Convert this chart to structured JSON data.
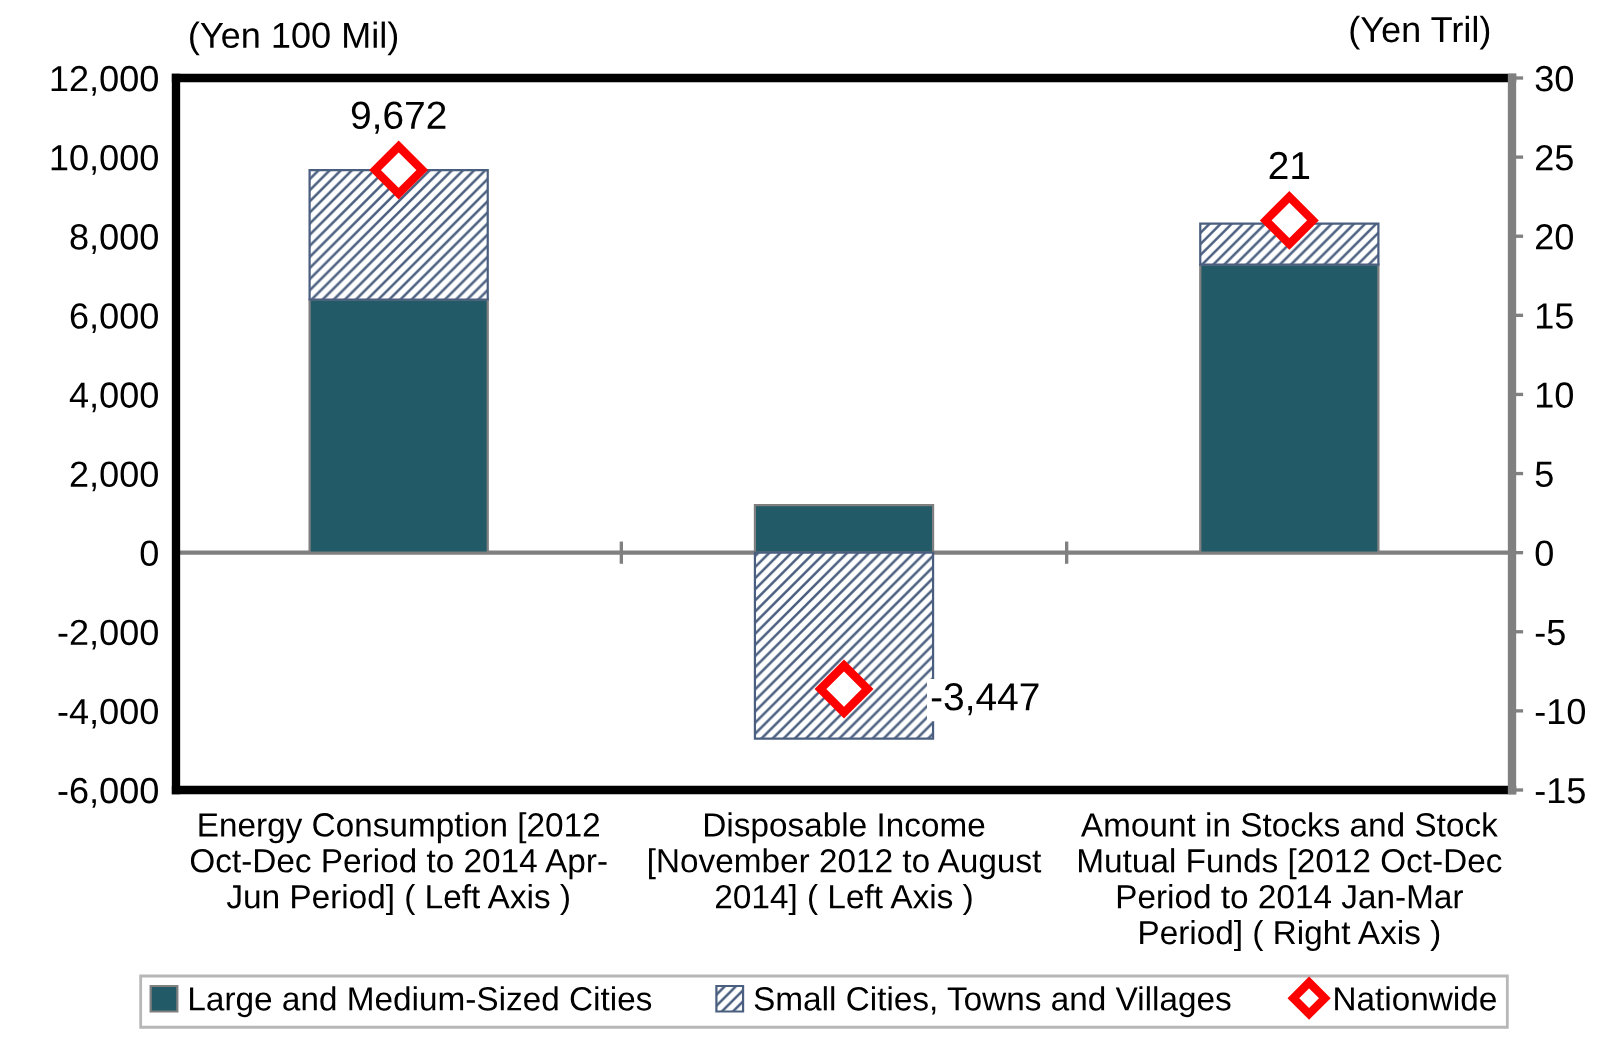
{
  "chart_data": {
    "type": "bar",
    "stacked": true,
    "categories": [
      "Energy Consumption [2012 Oct-Dec Period to 2014 Apr-Jun Period] ( Left Axis )",
      "Disposable Income [November 2012 to August 2014] ( Left Axis )",
      "Amount in Stocks and Stock Mutual Funds [2012 Oct-Dec Period to 2014 Jan-Mar Period] ( Right Axis )"
    ],
    "ylabel": "(Yen 100 Mil)",
    "y2label": "(Yen Tril)",
    "ylim": [
      -6000,
      12000
    ],
    "yticks": [
      {
        "value": -6000,
        "label": "-6,000"
      },
      {
        "value": -4000,
        "label": "-4,000"
      },
      {
        "value": -2000,
        "label": "-2,000"
      },
      0,
      {
        "value": 2000,
        "label": "2,000"
      },
      {
        "value": 4000,
        "label": "4,000"
      },
      {
        "value": 6000,
        "label": "6,000"
      },
      {
        "value": 8000,
        "label": "8,000"
      },
      {
        "value": 10000,
        "label": "10,000"
      },
      {
        "value": 12000,
        "label": "12,000"
      }
    ],
    "y2lim": [
      -15,
      30
    ],
    "y2ticks": [
      -15,
      -10,
      -5,
      0,
      5,
      10,
      15,
      20,
      25,
      30
    ],
    "legend": "bottom",
    "series": [
      {
        "name": "Large and Medium-Sized Cities",
        "color": "#235a68",
        "values": [
          6400,
          1200,
          null
        ]
      },
      {
        "name": "Small Cities, Towns and Villages",
        "color": "#4a5f80",
        "values": [
          3270,
          -4700,
          null
        ]
      },
      {
        "name": "Nationwide",
        "type": "scatter",
        "marker": "diamond",
        "color": "#ff0000",
        "values": [
          9672,
          -3447,
          null
        ],
        "value_labels": [
          "9,672",
          "-3,447",
          null
        ]
      },
      {
        "axis": "y2",
        "color": "#235a68",
        "values": [
          null,
          null,
          18.2
        ]
      },
      {
        "axis": "y2",
        "color": "#4a5f80",
        "values": [
          null,
          null,
          2.6
        ]
      },
      {
        "type": "scatter",
        "axis": "y2",
        "marker": "diamond",
        "color": "#ff0000",
        "values": [
          null,
          null,
          21
        ],
        "value_labels": [
          null,
          null,
          "21"
        ]
      }
    ]
  }
}
